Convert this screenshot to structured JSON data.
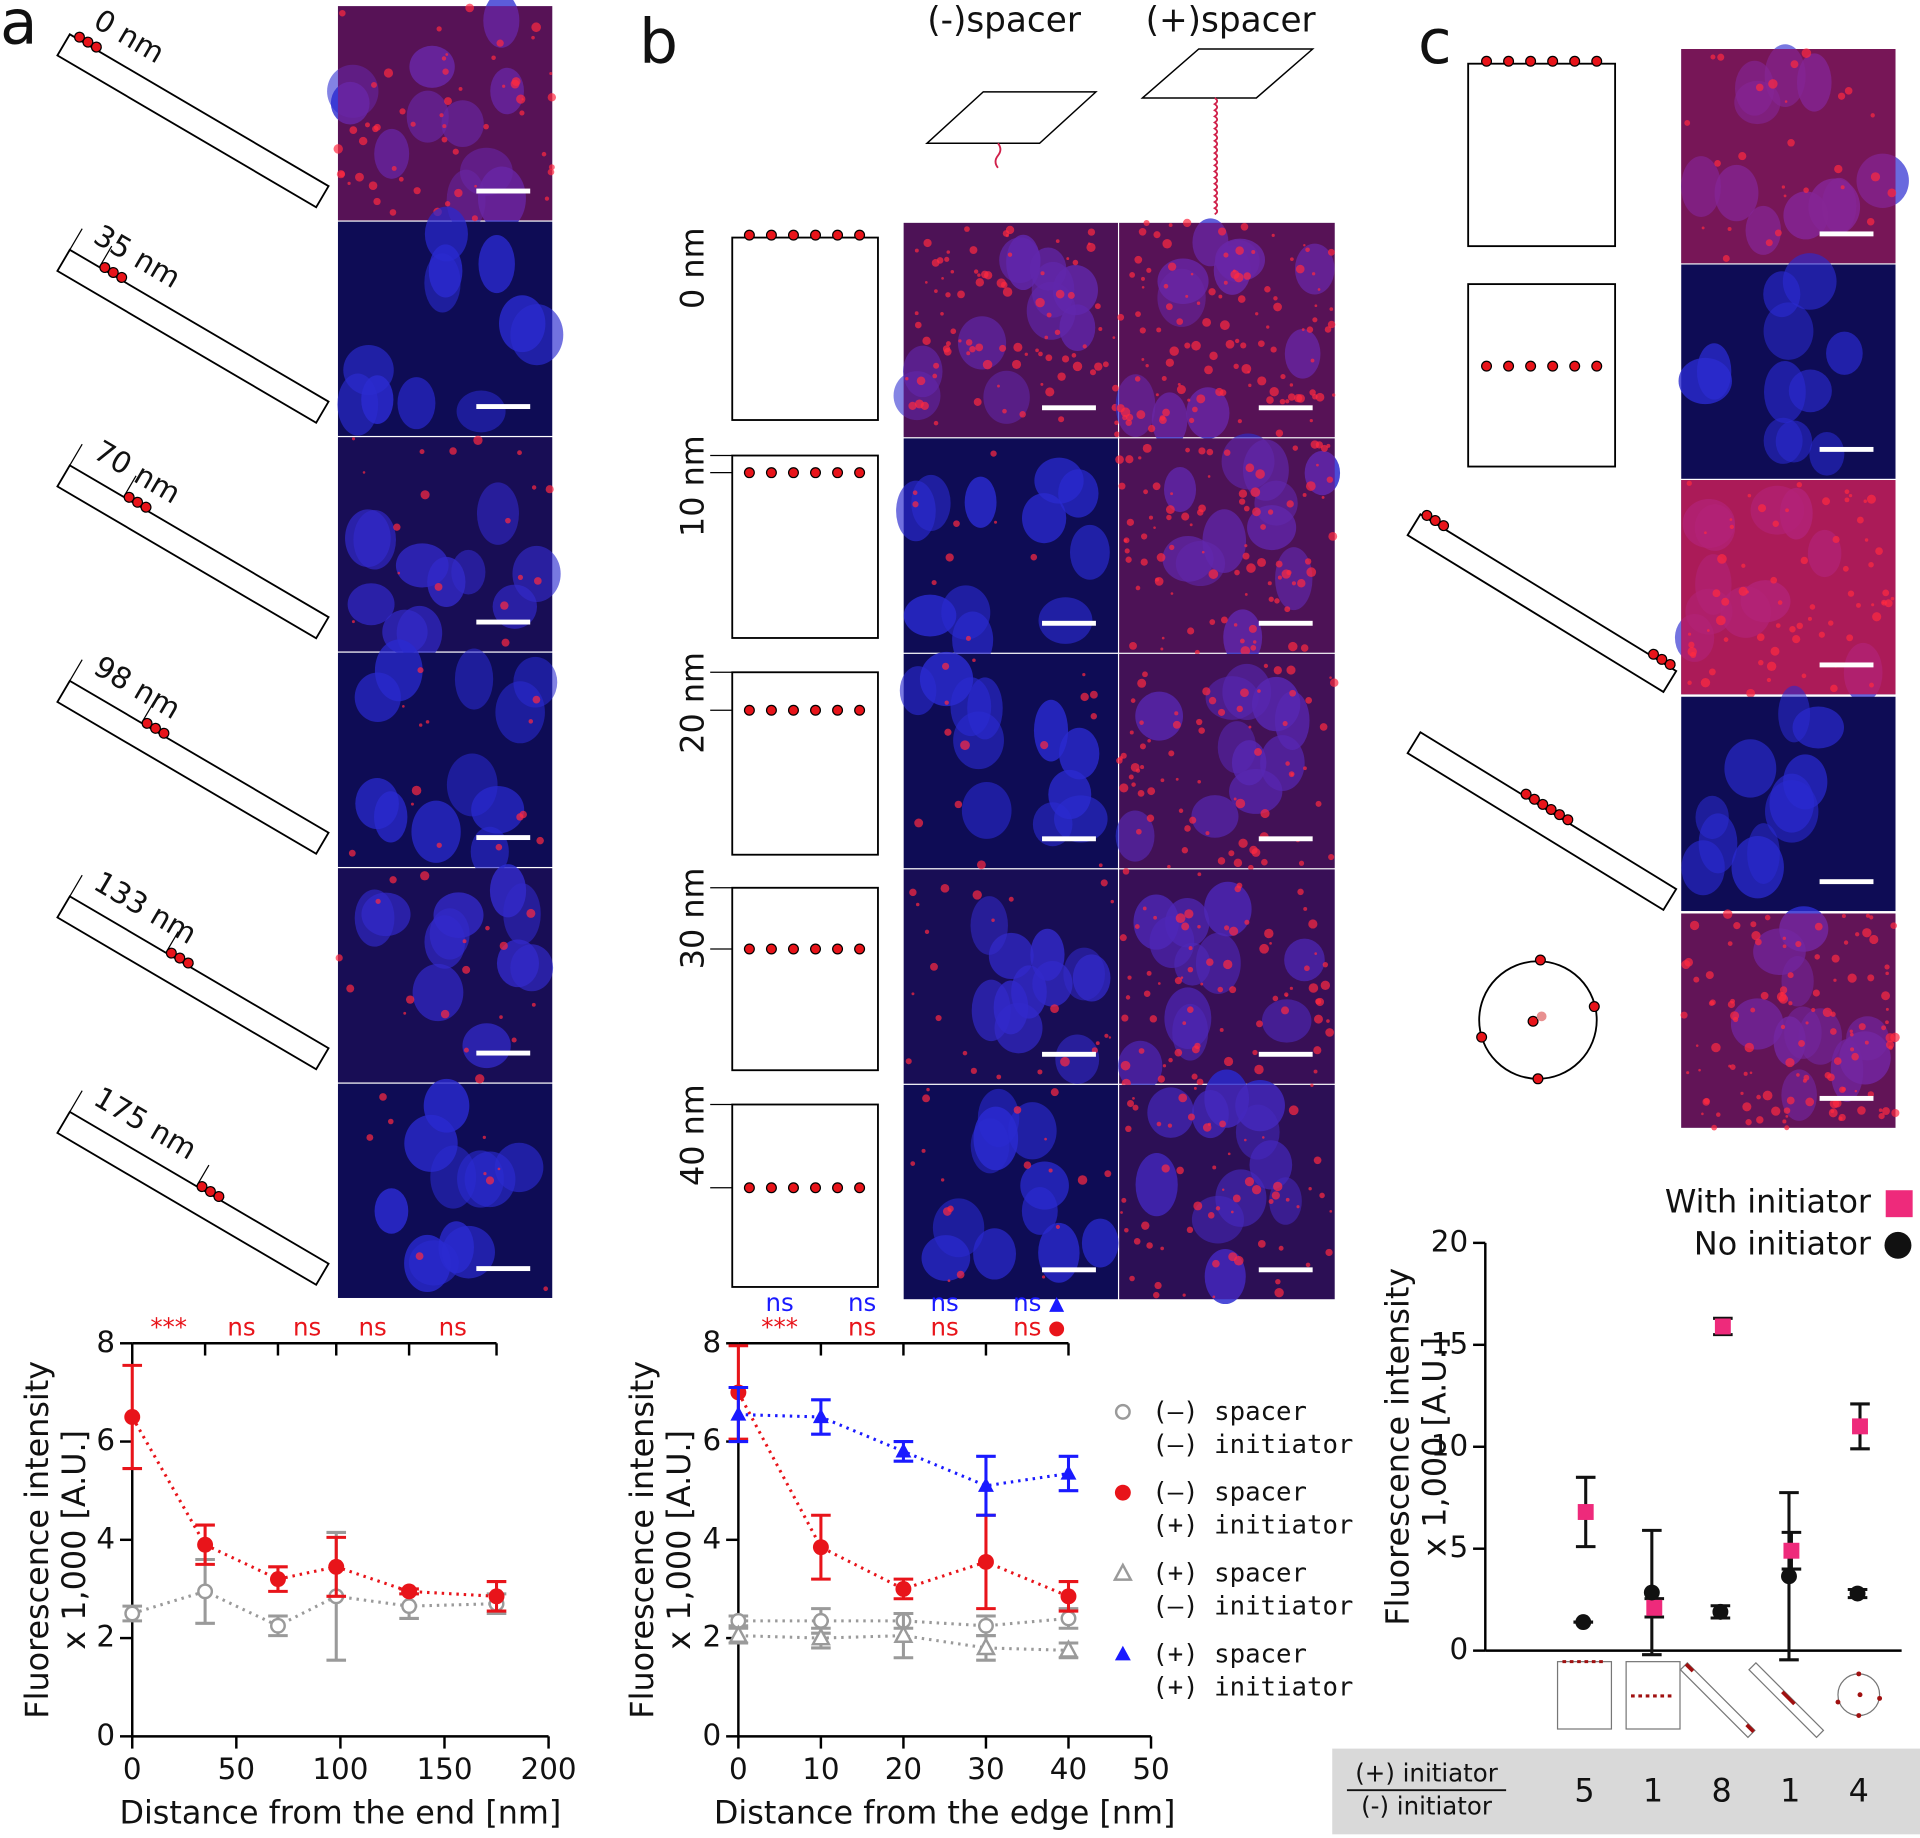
{
  "panel_labels": [
    "a",
    "b",
    "c"
  ],
  "panel_a": {
    "distances": [
      "0 nm",
      "35 nm",
      "70 nm",
      "98 nm",
      "133 nm",
      "175 nm"
    ]
  },
  "panel_b": {
    "columns": [
      "(-)spacer",
      "(+)spacer"
    ],
    "distances": [
      "0 nm",
      "10 nm",
      "20 nm",
      "30 nm",
      "40 nm"
    ]
  },
  "chart_data": [
    {
      "type": "line",
      "xlabel": "Distance from the end [nm]",
      "ylabel": [
        "Fluorescence intensity",
        "x 1,000 [A.U.]"
      ],
      "x": [
        0,
        35,
        70,
        98,
        133,
        175
      ],
      "xlim": [
        0,
        200
      ],
      "xticks": [
        0,
        50,
        100,
        150,
        200
      ],
      "ylim": [
        0,
        8
      ],
      "yticks": [
        0,
        2,
        4,
        6,
        8
      ],
      "series": [
        {
          "color": "#9a9a9a",
          "marker": "circle-open",
          "values": [
            2.5,
            2.95,
            2.25,
            2.85,
            2.65,
            2.7
          ],
          "errors": [
            0.15,
            0.65,
            0.2,
            1.3,
            0.25,
            0.2
          ]
        },
        {
          "color": "#e8141a",
          "marker": "circle",
          "values": [
            6.5,
            3.9,
            3.2,
            3.45,
            2.95,
            2.85
          ],
          "errors": [
            1.05,
            0.4,
            0.25,
            0.6,
            0.05,
            0.3
          ]
        }
      ],
      "significance": [
        {
          "color": "#e8141a",
          "labels": [
            "***",
            "ns",
            "ns",
            "ns",
            "ns"
          ]
        }
      ]
    },
    {
      "type": "line",
      "xlabel": "Distance from the edge [nm]",
      "ylabel": [
        "Fluorescence intensity",
        "x 1,000 [A.U.]"
      ],
      "x": [
        0,
        10,
        20,
        30,
        40
      ],
      "xlim": [
        0,
        50
      ],
      "xticks": [
        0,
        10,
        20,
        30,
        40,
        50
      ],
      "ylim": [
        0,
        8
      ],
      "yticks": [
        0,
        2,
        4,
        6,
        8
      ],
      "series": [
        {
          "name": "(–) spacer\n(–) initiator",
          "color": "#9a9a9a",
          "marker": "circle-open",
          "values": [
            2.35,
            2.35,
            2.35,
            2.25,
            2.4
          ],
          "errors": [
            0.1,
            0.25,
            0.15,
            0.2,
            0.2
          ]
        },
        {
          "name": "(–) spacer\n(+) initiator",
          "color": "#e8141a",
          "marker": "circle",
          "values": [
            7.0,
            3.85,
            3.0,
            3.55,
            2.85
          ],
          "errors": [
            0.95,
            0.65,
            0.2,
            0.95,
            0.3
          ]
        },
        {
          "name": "(+) spacer\n(–) initiator",
          "color": "#9a9a9a",
          "marker": "triangle-open",
          "values": [
            2.05,
            2.0,
            2.05,
            1.8,
            1.75
          ],
          "errors": [
            0.15,
            0.2,
            0.45,
            0.25,
            0.15
          ]
        },
        {
          "name": "(+) spacer\n(+) initiator",
          "color": "#1a1aff",
          "marker": "triangle",
          "values": [
            6.55,
            6.5,
            5.8,
            5.1,
            5.35
          ],
          "errors": [
            0.55,
            0.35,
            0.2,
            0.6,
            0.35
          ]
        }
      ],
      "significance": [
        {
          "color": "#1a1aff",
          "labels": [
            "ns",
            "ns",
            "ns",
            "ns"
          ],
          "symbol": "▲"
        },
        {
          "color": "#e8141a",
          "labels": [
            "***",
            "ns",
            "ns",
            "ns"
          ],
          "symbol": "●"
        }
      ]
    },
    {
      "type": "scatter",
      "ylabel": [
        "Fluorescence intensity",
        "x 1,000 [A.U.]"
      ],
      "categories": [
        null,
        null,
        null,
        null,
        null
      ],
      "ylim": [
        0,
        20
      ],
      "yticks": [
        0,
        5,
        10,
        15,
        20
      ],
      "series": [
        {
          "name": "With initiator",
          "color": "#ee2a7b",
          "marker": "square",
          "values": [
            6.8,
            2.1,
            15.9,
            4.9,
            11.0
          ],
          "errors": [
            1.7,
            0.45,
            0.4,
            0.9,
            1.1
          ]
        },
        {
          "name": "No initiator",
          "color": "#111111",
          "marker": "circle",
          "values": [
            1.4,
            2.85,
            1.9,
            3.65,
            2.8
          ],
          "errors": [
            0,
            3.05,
            0.3,
            4.1,
            0.2
          ]
        }
      ],
      "ratio": {
        "numerator": "(+) initiator",
        "denominator": "(-) initiator",
        "values": [
          5,
          1,
          8,
          1,
          4
        ]
      }
    }
  ]
}
